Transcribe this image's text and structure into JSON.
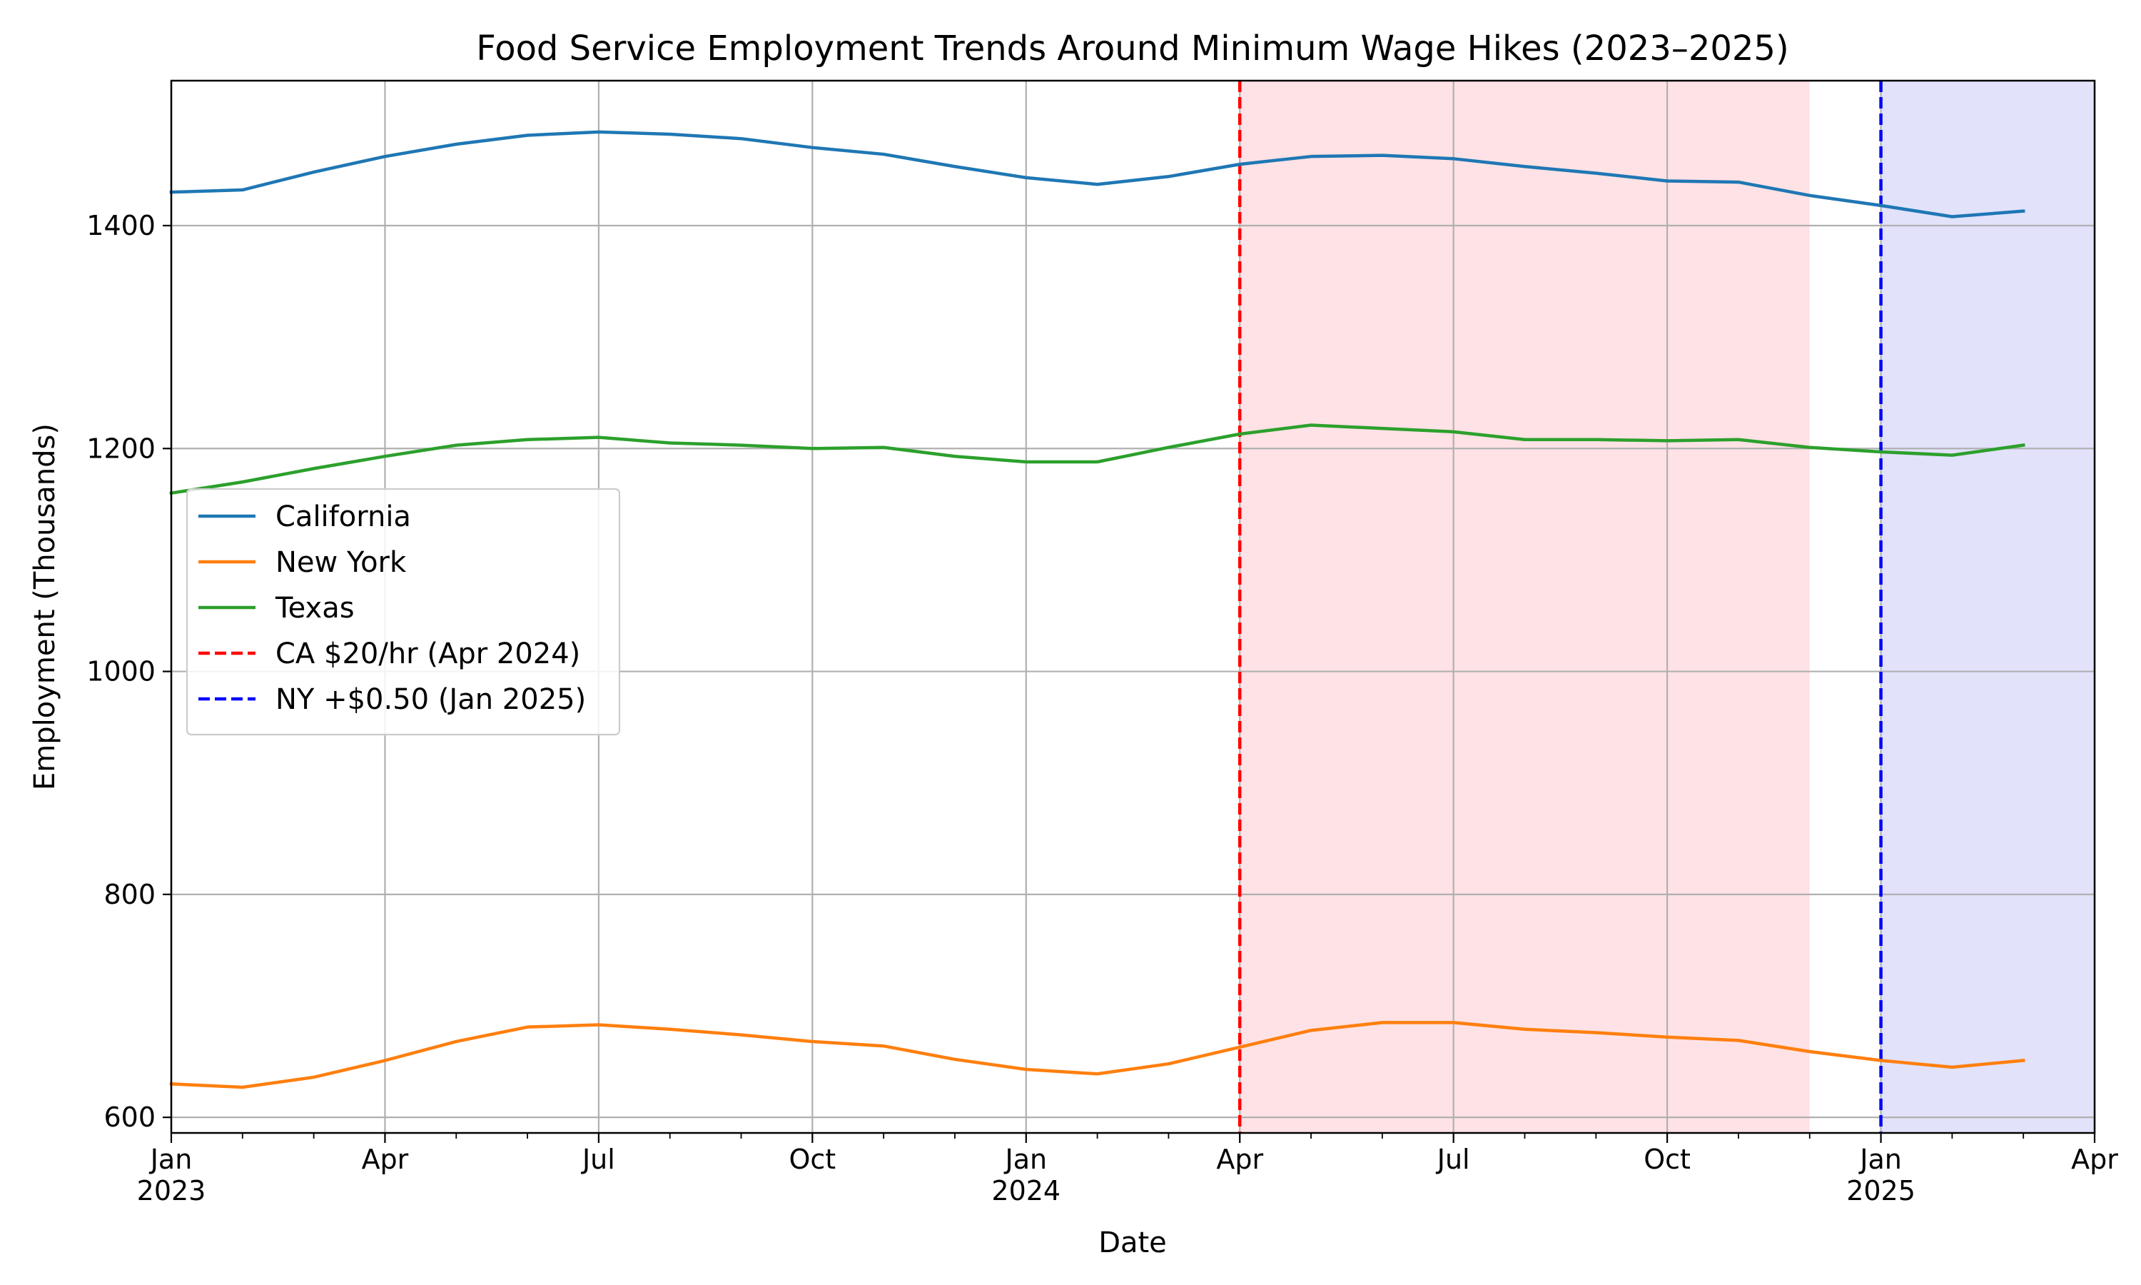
{
  "chart_data": {
    "type": "line",
    "title": "Food Service Employment Trends Around Minimum Wage Hikes (2023–2025)",
    "xlabel": "Date",
    "ylabel": "Employment (Thousands)",
    "x_range": [
      "2023-01",
      "2025-04"
    ],
    "ylim": [
      586,
      1530
    ],
    "grid": true,
    "legend_position": "center-left",
    "x_ticks": [
      {
        "date": "2023-01",
        "label": "Jan",
        "year": "2023"
      },
      {
        "date": "2023-04",
        "label": "Apr",
        "year": ""
      },
      {
        "date": "2023-07",
        "label": "Jul",
        "year": ""
      },
      {
        "date": "2023-10",
        "label": "Oct",
        "year": ""
      },
      {
        "date": "2024-01",
        "label": "Jan",
        "year": "2024"
      },
      {
        "date": "2024-04",
        "label": "Apr",
        "year": ""
      },
      {
        "date": "2024-07",
        "label": "Jul",
        "year": ""
      },
      {
        "date": "2024-10",
        "label": "Oct",
        "year": ""
      },
      {
        "date": "2025-01",
        "label": "Jan",
        "year": "2025"
      },
      {
        "date": "2025-04",
        "label": "Apr",
        "year": ""
      }
    ],
    "y_ticks": [
      600,
      800,
      1000,
      1200,
      1400
    ],
    "x": [
      "2023-01",
      "2023-02",
      "2023-03",
      "2023-04",
      "2023-05",
      "2023-06",
      "2023-07",
      "2023-08",
      "2023-09",
      "2023-10",
      "2023-11",
      "2023-12",
      "2024-01",
      "2024-02",
      "2024-03",
      "2024-04",
      "2024-05",
      "2024-06",
      "2024-07",
      "2024-08",
      "2024-09",
      "2024-10",
      "2024-11",
      "2024-12",
      "2025-01",
      "2025-02",
      "2025-03"
    ],
    "series": [
      {
        "name": "California",
        "color": "#1f77b4",
        "values": [
          1430,
          1432,
          1448,
          1462,
          1473,
          1481,
          1484,
          1482,
          1478,
          1470,
          1464,
          1453,
          1443,
          1437,
          1444,
          1455,
          1462,
          1463,
          1460,
          1453,
          1447,
          1440,
          1439,
          1427,
          1418,
          1408,
          1413
        ]
      },
      {
        "name": "New York",
        "color": "#ff7f0e",
        "values": [
          630,
          627,
          636,
          651,
          668,
          681,
          683,
          679,
          674,
          668,
          664,
          652,
          643,
          639,
          648,
          663,
          678,
          685,
          685,
          679,
          676,
          672,
          669,
          659,
          651,
          645,
          651
        ]
      },
      {
        "name": "Texas",
        "color": "#2ca02c",
        "values": [
          1160,
          1170,
          1182,
          1193,
          1203,
          1208,
          1210,
          1205,
          1203,
          1200,
          1201,
          1193,
          1188,
          1188,
          1201,
          1213,
          1221,
          1218,
          1215,
          1208,
          1208,
          1207,
          1208,
          1201,
          1197,
          1194,
          1203
        ]
      }
    ],
    "vlines": [
      {
        "name": "CA $20/hr (Apr 2024)",
        "date": "2024-04",
        "color": "#ff0000"
      },
      {
        "name": "NY +$0.50 (Jan 2025)",
        "date": "2025-01",
        "color": "#0000ff"
      }
    ],
    "shaded_regions": [
      {
        "start": "2024-04",
        "end": "2024-12",
        "color": "#ffb3ba"
      },
      {
        "start": "2025-01",
        "end": "2025-04",
        "color": "#b3b3f5"
      }
    ]
  }
}
